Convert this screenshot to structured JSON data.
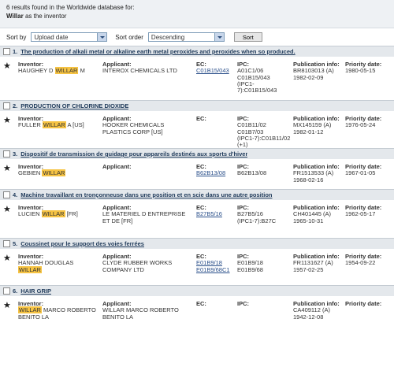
{
  "header": {
    "results_line": "6 results found in the Worldwide database for:",
    "query_name": "Willar",
    "query_suffix": "as the inventor"
  },
  "controls": {
    "sort_by_label": "Sort by",
    "sort_by_value": "Upload date",
    "sort_order_label": "Sort order",
    "sort_order_value": "Descending",
    "sort_button": "Sort"
  },
  "labels": {
    "inventor": "Inventor:",
    "applicant": "Applicant:",
    "ec": "EC:",
    "ipc": "IPC:",
    "pub": "Publication info:",
    "pri": "Priority date:"
  },
  "results": [
    {
      "num": "1.",
      "title": "The production of alkali metal or alkaline earth metal peroxides and peroxides when so produced.",
      "inventor_pre": "HAUGHEY D",
      "inventor_hl": "WILLAR",
      "inventor_post": "M",
      "applicant": "INTEROX CHEMICALS LTD",
      "ec": [
        "C01B15/043"
      ],
      "ipc": [
        "A01C1/06",
        "C01B15/043",
        "(IPC1-7):C01B15/043"
      ],
      "pub": [
        "BR8103013 (A)",
        "1982-02-09"
      ],
      "priority": "1980-05-15"
    },
    {
      "num": "2.",
      "title": "PRODUCTION OF CHLORINE DIOXIDE",
      "inventor_pre": "FULLER",
      "inventor_hl": "WILLAR",
      "inventor_post": "A [US]",
      "applicant": "HOOKER CHEMICALS PLASTICS CORP [US]",
      "ec": [],
      "ipc": [
        "C01B11/02",
        "C01B7/03",
        "(IPC1-7):C01B11/02",
        "(+1)"
      ],
      "pub": [
        "MX145159 (A)",
        "1982-01-12"
      ],
      "priority": "1976-05-24"
    },
    {
      "num": "3.",
      "title": "Dispositif de transmission de guidage pour appareils destinés aux sports d'hiver",
      "inventor_pre": "GEBIEN",
      "inventor_hl": "WILLAR",
      "inventor_post": "",
      "applicant": "",
      "ec": [
        "B62B13/08"
      ],
      "ipc": [
        "B62B13/08"
      ],
      "pub": [
        "FR1513533 (A)",
        "1968-02-16"
      ],
      "priority": "1967-01-05"
    },
    {
      "num": "4.",
      "title": "Machine travaillant en tronçonneuse dans une position et en scie dans une autre position",
      "inventor_pre": "LUCIEN",
      "inventor_hl": "WILLAR",
      "inventor_post": "[FR]",
      "applicant": "LE MATERIEL D ENTREPRISE ET DE [FR]",
      "ec": [
        "B27B5/16"
      ],
      "ipc": [
        "B27B5/16",
        "(IPC1-7):B27C"
      ],
      "pub": [
        "CH401445 (A)",
        "1965-10-31"
      ],
      "priority": "1962-05-17"
    },
    {
      "num": "5.",
      "title": "Coussinet pour le support des voies ferrées",
      "inventor_pre": "HANNAH DOUGLAS",
      "inventor_hl": "WILLAR",
      "inventor_post": "",
      "applicant": "CLYDE RUBBER WORKS COMPANY LTD",
      "ec": [
        "E01B9/18",
        "E01B9/68C1"
      ],
      "ipc": [
        "E01B9/18",
        "E01B9/68"
      ],
      "pub": [
        "FR1131627 (A)",
        "1957-02-25"
      ],
      "priority": "1954-09-22"
    },
    {
      "num": "6.",
      "title": "HAIR GRIP",
      "inventor_pre": "",
      "inventor_hl": "WILLAR",
      "inventor_post": "MARCO ROBERTO BENITO LA",
      "applicant": "WILLAR MARCO ROBERTO BENITO LA",
      "ec": [],
      "ipc": [],
      "pub": [
        "CA409112 (A)",
        "1942-12-08"
      ],
      "priority": ""
    }
  ]
}
